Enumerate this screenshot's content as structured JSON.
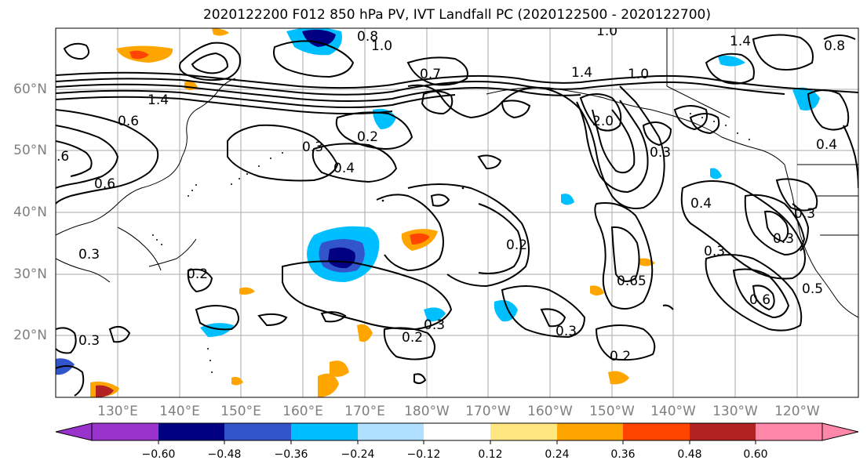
{
  "title": "2020122200 F012 850 hPa PV, IVT Landfall PC (2020122500 - 2020122700)",
  "latitude_labels": [
    "60°N",
    "50°N",
    "40°N",
    "30°N",
    "20°N"
  ],
  "longitude_labels": [
    "130°E",
    "140°E",
    "150°E",
    "160°E",
    "170°E",
    "180°W",
    "170°W",
    "160°W",
    "150°W",
    "140°W",
    "130°W",
    "120°W"
  ],
  "colorbar": {
    "tick_labels": [
      "−0.60",
      "−0.48",
      "−0.36",
      "−0.24",
      "−0.12",
      "0.12",
      "0.24",
      "0.36",
      "0.48",
      "0.60"
    ],
    "colors": [
      "#9933cc",
      "#000080",
      "#3355cc",
      "#00bfff",
      "#b0e0ff",
      "#ffffff",
      "#ffe680",
      "#ffa500",
      "#ff4500",
      "#b22222",
      "#ff88aa"
    ]
  },
  "contour_labels": [
    {
      "text": "0.8"
    },
    {
      "text": "1.0"
    },
    {
      "text": "1.0"
    },
    {
      "text": "1.4"
    },
    {
      "text": "1.4"
    },
    {
      "text": "0.8"
    },
    {
      "text": "1.4"
    },
    {
      "text": "0.7"
    },
    {
      "text": "0.6"
    },
    {
      "text": "0.3"
    },
    {
      "text": "0.2"
    },
    {
      "text": "0.4"
    },
    {
      "text": "0.6"
    },
    {
      "text": ".6"
    },
    {
      "text": "2.0"
    },
    {
      "text": "0.3"
    },
    {
      "text": "0.4"
    },
    {
      "text": "0.3"
    },
    {
      "text": "0.2"
    },
    {
      "text": "0.3"
    },
    {
      "text": "0.65"
    },
    {
      "text": "0.3"
    },
    {
      "text": "0.5"
    },
    {
      "text": "0.6"
    },
    {
      "text": "0.3"
    },
    {
      "text": "0.2"
    },
    {
      "text": "0.3"
    },
    {
      "text": "0.2"
    },
    {
      "text": "0.3"
    },
    {
      "text": "0.3"
    },
    {
      "text": "0.2"
    },
    {
      "text": "1.0"
    },
    {
      "text": "0.4"
    }
  ]
}
